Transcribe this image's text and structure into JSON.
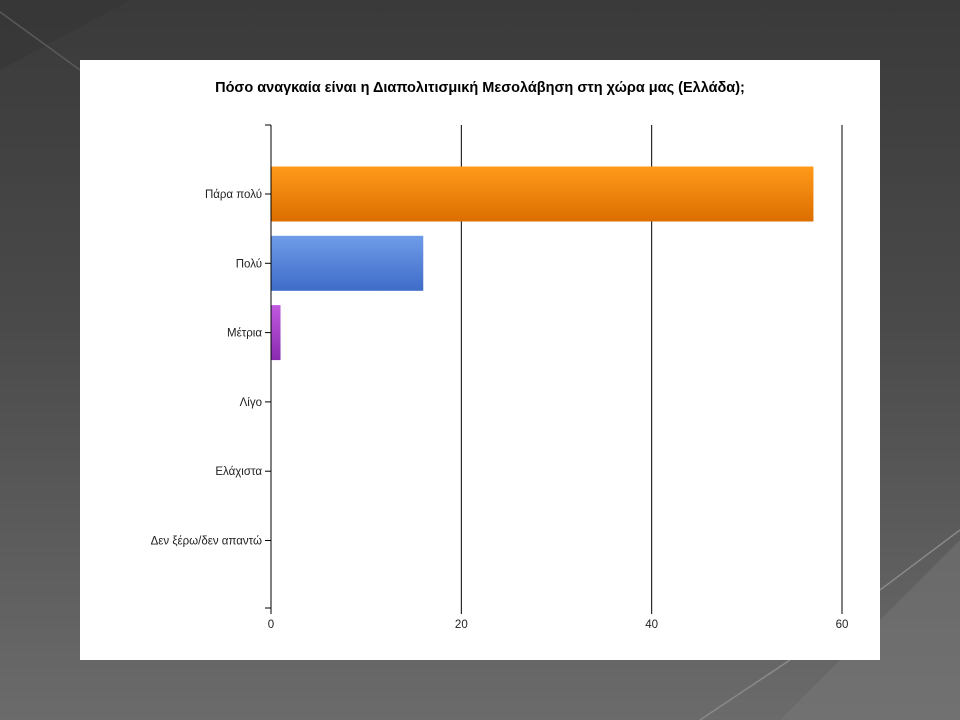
{
  "chart_data": {
    "type": "bar",
    "orientation": "horizontal",
    "title": "Πόσο αναγκαία είναι η Διαπολιτισμική Μεσολάβηση στη χώρα μας (Ελλάδα);",
    "categories": [
      "Πάρα πολύ",
      "Πολύ",
      "Μέτρια",
      "Λίγο",
      "Ελάχιστα",
      "Δεν ξέρω/δεν απαντώ"
    ],
    "values": [
      57,
      16,
      1,
      0,
      0,
      0
    ],
    "colors": [
      "#f08300",
      "#4f7fd8",
      "#a03cc8",
      "#cccccc",
      "#cccccc",
      "#cccccc"
    ],
    "xlim": [
      0,
      60
    ],
    "xticks": [
      0,
      20,
      40,
      60
    ],
    "grid": true,
    "xlabel": "",
    "ylabel": ""
  }
}
